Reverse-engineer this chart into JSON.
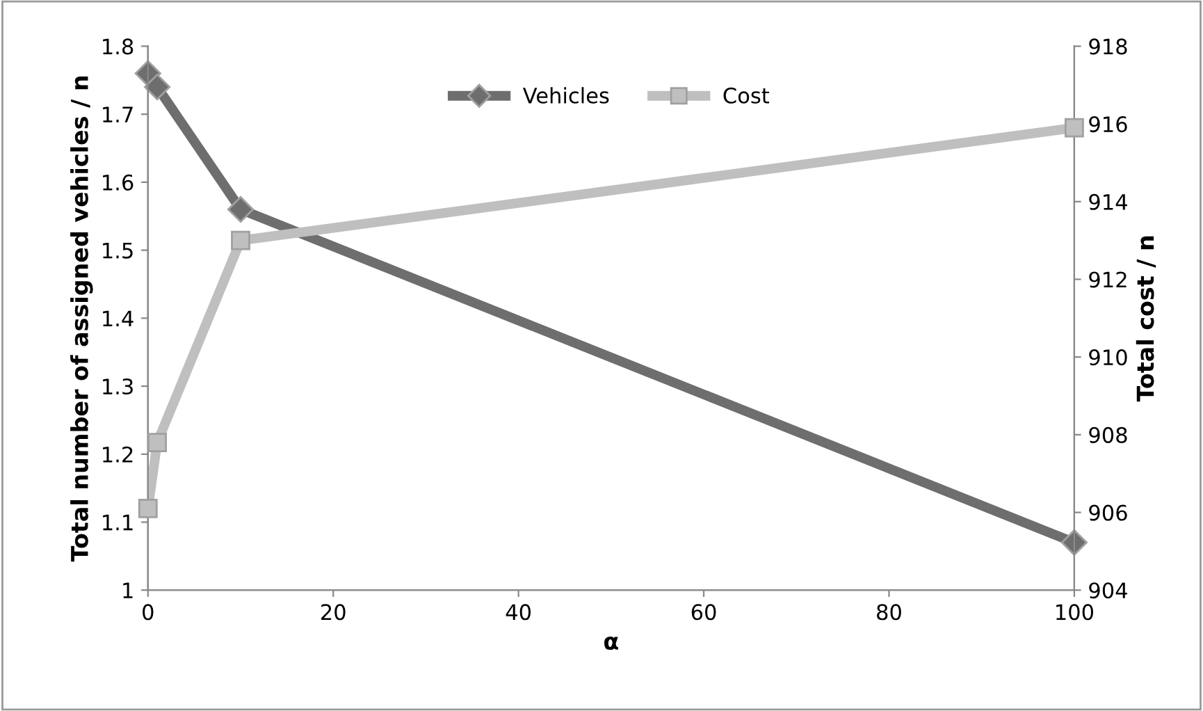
{
  "chart_data": {
    "type": "line",
    "xlabel": "α",
    "ylabel": "Total number of assigned vehicles / n",
    "y2label": "Total cost / n",
    "x": [
      0,
      1,
      10,
      100
    ],
    "series": [
      {
        "name": "Vehicles",
        "color": "#6e6e6e",
        "values": [
          1.76,
          1.74,
          1.56,
          1.07
        ],
        "marker": "diamond"
      },
      {
        "name": "Cost",
        "color": "#bfbfbf",
        "values": [
          906.1,
          907.8,
          913.0,
          915.9
        ],
        "axis": "y2",
        "marker": "square"
      }
    ],
    "xlim": [
      0,
      100
    ],
    "xticks": [
      0,
      20,
      40,
      60,
      80,
      100
    ],
    "ylim": [
      1,
      1.8
    ],
    "yticks": [
      1,
      1.1,
      1.2,
      1.3,
      1.4,
      1.5,
      1.6,
      1.7,
      1.8
    ],
    "y2lim": [
      904,
      918
    ],
    "y2ticks": [
      904,
      906,
      908,
      910,
      912,
      914,
      916,
      918
    ],
    "grid": false,
    "legend": "top",
    "line_style": "solid"
  }
}
